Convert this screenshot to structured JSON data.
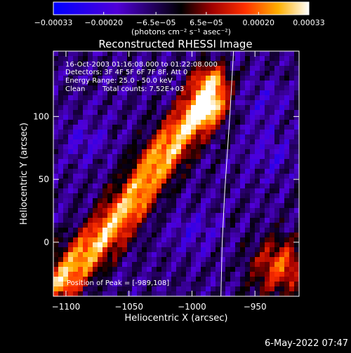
{
  "chart_data": {
    "type": "heatmap",
    "title": "Reconstructed RHESSI Image",
    "xlabel": "Heliocentric X (arcsec)",
    "ylabel": "Heliocentric Y (arcsec)",
    "xlim": [
      -1110,
      -915
    ],
    "ylim": [
      -43,
      152
    ],
    "x_ticks": [
      -1100,
      -1050,
      -1000,
      -950
    ],
    "x_tick_labels": [
      "−1100",
      "−1050",
      "−1000",
      "−950"
    ],
    "y_ticks": [
      0,
      50,
      100
    ],
    "y_tick_labels": [
      "0",
      "50",
      "100"
    ],
    "colorbar": {
      "range": [
        -0.00033,
        0.00033
      ],
      "ticks": [
        -0.00033,
        -0.0002,
        -6.5e-05,
        6.5e-05,
        0.0002,
        0.00033
      ],
      "tick_labels": [
        "−0.00033",
        "−0.00020",
        "−6.5e−05",
        "6.5e−05",
        "0.00020",
        "0.00033"
      ],
      "units_label": "(photons cm⁻² s⁻¹ asec⁻²)"
    },
    "annotations": {
      "time_range": "16-Oct-2003 01:16:08.000 to 01:22:08.000",
      "detectors": "Detectors: 3F 4F 5F 6F 7F 8F, Att 0",
      "energy": "Energy Range: 25.0 - 50.0 keV",
      "clean": "Clean",
      "total_counts": "Total counts: 7.52E+03",
      "peak": "Position of Peak = [-989,108]"
    },
    "peak_position": [
      -989,
      108
    ],
    "limb": [
      [
        -967,
        152
      ],
      [
        -970,
        100
      ],
      [
        -974,
        40
      ],
      [
        -976,
        0
      ],
      [
        -977,
        -43
      ]
    ],
    "emission_ridge": [
      [
        -1103,
        -30
      ],
      [
        -1075,
        0
      ],
      [
        -1045,
        35
      ],
      [
        -1030,
        60
      ],
      [
        -1010,
        85
      ],
      [
        -990,
        108
      ],
      [
        -985,
        125
      ]
    ],
    "negative_lobes": [
      [
        -1085,
        80
      ],
      [
        -940,
        70
      ],
      [
        -945,
        110
      ],
      [
        -1000,
        10
      ]
    ],
    "grid": false
  },
  "footer": {
    "timestamp": "6-May-2022 07:47"
  }
}
